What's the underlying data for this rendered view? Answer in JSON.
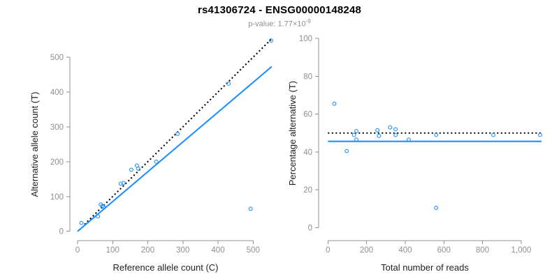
{
  "header": {
    "title": "rs41306724 - ENSG00000148248",
    "pvalue_prefix": "p-value: 1.77×10",
    "pvalue_exponent": "-9"
  },
  "colors": {
    "point_blue": "#1E90FF",
    "fit_line_blue": "#1E90FF",
    "dotted_line_black": "#000000",
    "axis_gray": "#8f8f8f",
    "axis_title_dark": "#1f1f1f"
  },
  "chart_data": [
    {
      "id": "allele-count-scatter",
      "type": "scatter",
      "xlabel": "Reference allele count (C)",
      "ylabel": "Alternative allele count (T)",
      "xlim": [
        0,
        555
      ],
      "ylim": [
        0,
        555
      ],
      "grid": "off",
      "xticks": [
        0,
        100,
        200,
        300,
        400,
        500
      ],
      "xtick_labels": [
        "0",
        "100",
        "200",
        "300",
        "400",
        "500"
      ],
      "yticks": [
        0,
        100,
        200,
        300,
        400,
        500
      ],
      "ytick_labels": [
        "0",
        "100",
        "200",
        "300",
        "400",
        "500"
      ],
      "points": [
        [
          11,
          24
        ],
        [
          58,
          43
        ],
        [
          66,
          77
        ],
        [
          71,
          73
        ],
        [
          74,
          70
        ],
        [
          123,
          137
        ],
        [
          131,
          139
        ],
        [
          153,
          177
        ],
        [
          169,
          189
        ],
        [
          173,
          180
        ],
        [
          224,
          200
        ],
        [
          285,
          280
        ],
        [
          430,
          424
        ],
        [
          493,
          65
        ],
        [
          551,
          548
        ]
      ],
      "lines": [
        {
          "name": "identity-line",
          "style": "dotted",
          "color": "#000000",
          "x": [
            20,
            552
          ],
          "y": [
            20,
            552
          ]
        },
        {
          "name": "fit-line",
          "style": "solid",
          "color": "#1E90FF",
          "x": [
            0,
            553
          ],
          "y": [
            0,
            473
          ]
        }
      ]
    },
    {
      "id": "percentage-vs-reads-scatter",
      "type": "scatter",
      "xlabel": "Total number of reads",
      "ylabel": "Percentage alternative (T)",
      "xlim": [
        0,
        1110
      ],
      "ylim": [
        0,
        100
      ],
      "grid": "off",
      "xticks": [
        0,
        200,
        400,
        600,
        800,
        1000
      ],
      "xtick_labels": [
        "0",
        "200",
        "400",
        "600",
        "800",
        "1,000"
      ],
      "yticks": [
        0,
        20,
        40,
        60,
        80,
        100
      ],
      "ytick_labels": [
        "0",
        "20",
        "40",
        "60",
        "80",
        "100"
      ],
      "points": [
        [
          33,
          65.5
        ],
        [
          97,
          40.5
        ],
        [
          135,
          49
        ],
        [
          147,
          51
        ],
        [
          147,
          46.5
        ],
        [
          256,
          51.5
        ],
        [
          264,
          48.5
        ],
        [
          322,
          53
        ],
        [
          350,
          52
        ],
        [
          350,
          49
        ],
        [
          418,
          46.5
        ],
        [
          560,
          49
        ],
        [
          560,
          10.5
        ],
        [
          856,
          49
        ],
        [
          1098,
          49
        ]
      ],
      "lines": [
        {
          "name": "expected-50pct-line",
          "style": "dotted",
          "color": "#000000",
          "x": [
            0,
            1105
          ],
          "y": [
            50,
            50
          ]
        },
        {
          "name": "fit-line",
          "style": "solid",
          "color": "#1E90FF",
          "x": [
            0,
            1105
          ],
          "y": [
            45.6,
            45.6
          ]
        }
      ]
    }
  ]
}
